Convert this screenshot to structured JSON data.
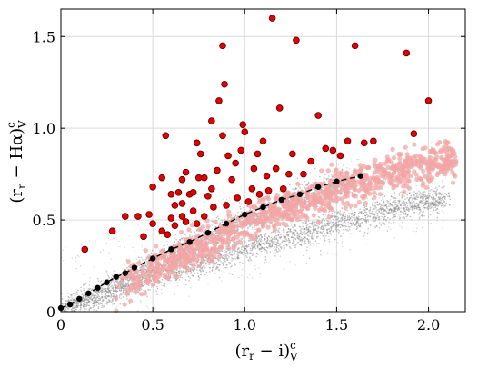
{
  "chart_data": {
    "type": "scatter",
    "xlabel": "(r_r − i)^c_V",
    "ylabel": "(r_r − Hα)^c_V",
    "xlim": [
      0.0,
      2.2
    ],
    "ylim": [
      0.0,
      1.65
    ],
    "xticks": [
      0.0,
      0.5,
      1.0,
      1.5,
      2.0
    ],
    "yticks": [
      0.0,
      0.5,
      1.0,
      1.5
    ],
    "xtick_labels": [
      "0",
      "0.5",
      "1.0",
      "1.5",
      "2.0"
    ],
    "ytick_labels": [
      "0",
      "0.5",
      "1.0",
      "1.5"
    ],
    "grid": true,
    "series": [
      {
        "role": "background field stars",
        "color": "#8a8a8a",
        "style": "small grey points, two dense diagonal branches",
        "branches": [
          {
            "x": [
              0.0,
              0.3,
              0.6,
              0.9,
              1.2,
              1.5,
              1.8,
              2.1
            ],
            "y": [
              0.02,
              0.12,
              0.22,
              0.31,
              0.4,
              0.48,
              0.56,
              0.62
            ]
          },
          {
            "x": [
              0.0,
              0.2,
              0.4,
              0.6,
              0.8,
              1.0,
              1.2,
              1.4,
              1.6
            ],
            "y": [
              0.0,
              0.08,
              0.2,
              0.3,
              0.4,
              0.5,
              0.58,
              0.66,
              0.72
            ]
          }
        ]
      },
      {
        "role": "pink candidates",
        "color": "#f2a5a5",
        "style": "medium pink dots along the upper branch",
        "x_range": [
          0.3,
          2.15
        ]
      },
      {
        "role": "main-sequence reference track",
        "color": "#000000",
        "style": "black dots joined by dashed line",
        "x": [
          0.0,
          0.05,
          0.1,
          0.15,
          0.2,
          0.25,
          0.3,
          0.35,
          0.4,
          0.5,
          0.6,
          0.7,
          0.8,
          0.9,
          1.0,
          1.1,
          1.2,
          1.3,
          1.4,
          1.5,
          1.63
        ],
        "y": [
          0.02,
          0.04,
          0.07,
          0.1,
          0.13,
          0.16,
          0.19,
          0.21,
          0.24,
          0.29,
          0.34,
          0.38,
          0.43,
          0.48,
          0.53,
          0.57,
          0.61,
          0.64,
          0.68,
          0.71,
          0.74
        ]
      },
      {
        "role": "Hα excess emitters",
        "color": "#e30000",
        "style": "large red dots with dark outline",
        "points": [
          [
            0.13,
            0.34
          ],
          [
            0.35,
            0.52
          ],
          [
            0.28,
            0.44
          ],
          [
            0.42,
            0.52
          ],
          [
            0.45,
            0.41
          ],
          [
            0.48,
            0.53
          ],
          [
            0.5,
            0.48
          ],
          [
            0.55,
            0.44
          ],
          [
            0.58,
            0.42
          ],
          [
            0.6,
            0.51
          ],
          [
            0.62,
            0.47
          ],
          [
            0.66,
            0.52
          ],
          [
            0.68,
            0.49
          ],
          [
            0.72,
            0.55
          ],
          [
            0.74,
            0.48
          ],
          [
            0.78,
            0.52
          ],
          [
            0.5,
            0.68
          ],
          [
            0.55,
            0.73
          ],
          [
            0.57,
            0.96
          ],
          [
            0.6,
            0.64
          ],
          [
            0.62,
            0.58
          ],
          [
            0.64,
            0.65
          ],
          [
            0.66,
            0.59
          ],
          [
            0.68,
            0.76
          ],
          [
            0.7,
            0.64
          ],
          [
            0.72,
            0.65
          ],
          [
            0.75,
            0.73
          ],
          [
            0.76,
            0.86
          ],
          [
            0.78,
            0.73
          ],
          [
            0.8,
            0.63
          ],
          [
            0.82,
            0.67
          ],
          [
            0.83,
            0.57
          ],
          [
            0.85,
            0.77
          ],
          [
            0.86,
            1.15
          ],
          [
            0.88,
            0.96
          ],
          [
            0.89,
            1.24
          ],
          [
            0.9,
            0.58
          ],
          [
            0.91,
            0.85
          ],
          [
            0.93,
            0.72
          ],
          [
            0.95,
            0.81
          ],
          [
            0.96,
            0.62
          ],
          [
            0.98,
            0.88
          ],
          [
            0.99,
            1.02
          ],
          [
            1.0,
            0.98
          ],
          [
            1.02,
            0.6
          ],
          [
            1.04,
            0.67
          ],
          [
            1.05,
            0.78
          ],
          [
            1.07,
            0.86
          ],
          [
            1.08,
            0.64
          ],
          [
            1.1,
            0.93
          ],
          [
            1.12,
            0.74
          ],
          [
            1.13,
            0.66
          ],
          [
            1.15,
            1.6
          ],
          [
            1.17,
            0.78
          ],
          [
            1.19,
            1.11
          ],
          [
            1.21,
            0.67
          ],
          [
            1.24,
            0.75
          ],
          [
            1.26,
            0.86
          ],
          [
            1.28,
            1.48
          ],
          [
            1.32,
            0.75
          ],
          [
            1.36,
            0.82
          ],
          [
            1.4,
            1.07
          ],
          [
            1.44,
            0.89
          ],
          [
            1.48,
            0.88
          ],
          [
            1.52,
            0.85
          ],
          [
            1.56,
            0.93
          ],
          [
            1.6,
            1.45
          ],
          [
            1.65,
            0.92
          ],
          [
            1.7,
            0.93
          ],
          [
            1.88,
            1.41
          ],
          [
            1.92,
            0.97
          ],
          [
            2.0,
            1.15
          ],
          [
            0.88,
            1.45
          ],
          [
            0.82,
            1.04
          ],
          [
            0.74,
            0.92
          ],
          [
            0.66,
            0.72
          ]
        ]
      }
    ]
  }
}
